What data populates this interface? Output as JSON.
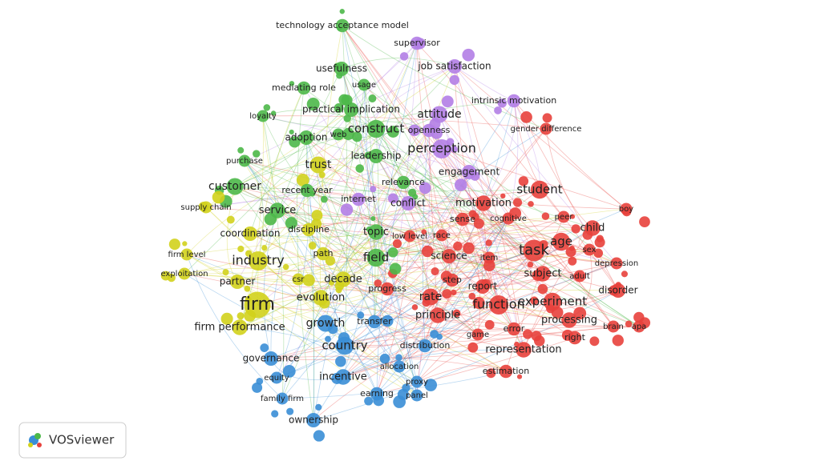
{
  "logo": {
    "text": "VOSviewer"
  },
  "clusters": [
    {
      "color": "#e8413c",
      "nodes": [
        "student",
        "motivation",
        "sense",
        "cognitive",
        "peer",
        "boy",
        "child",
        "age",
        "task",
        "sex",
        "depression",
        "race",
        "low level",
        "science",
        "item",
        "subject",
        "adult",
        "step",
        "report",
        "disorder",
        "rate",
        "function",
        "experiment",
        "principle",
        "processing",
        "brain",
        "apa",
        "error",
        "right",
        "game",
        "representation",
        "estimation",
        "gender difference",
        "progress"
      ]
    },
    {
      "color": "#b27ee6",
      "nodes": [
        "supervisor",
        "job satisfaction",
        "intrinsic motivation",
        "attitude",
        "openness",
        "perception",
        "engagement",
        "internet",
        "conflict"
      ]
    },
    {
      "color": "#4cb849",
      "nodes": [
        "technology acceptance model",
        "usefulness",
        "usage",
        "mediating role",
        "practical implication",
        "loyalty",
        "construct",
        "web",
        "adoption",
        "leadership",
        "purchase",
        "customer",
        "recent year",
        "relevance",
        "service",
        "topic",
        "field"
      ]
    },
    {
      "color": "#d2d21c",
      "nodes": [
        "trust",
        "supply chain",
        "coordination",
        "discipline",
        "firm level",
        "path",
        "industry",
        "exploitation",
        "csr",
        "partner",
        "decade",
        "firm",
        "evolution",
        "firm performance"
      ]
    },
    {
      "color": "#3a8ed6",
      "nodes": [
        "growth",
        "transfer",
        "country",
        "distribution",
        "governance",
        "allocation",
        "incentive",
        "equity",
        "proxy",
        "earning",
        "panel",
        "family firm",
        "ownership"
      ]
    }
  ]
}
